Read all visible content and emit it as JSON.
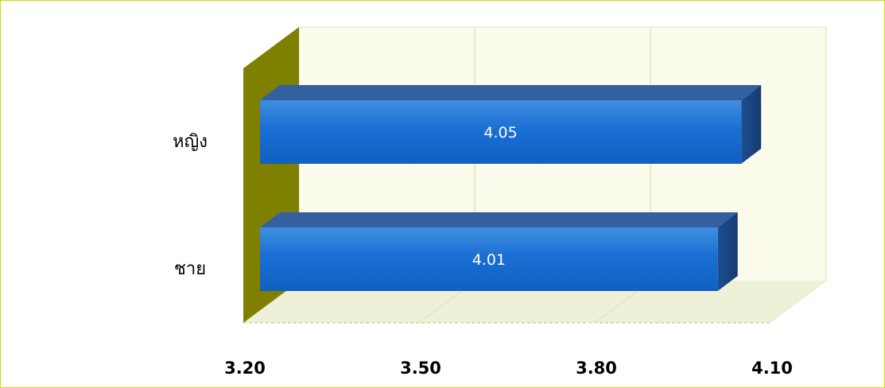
{
  "chart_data": {
    "type": "bar",
    "orientation": "horizontal",
    "three_d": true,
    "categories": [
      "ชาย",
      "หญิง"
    ],
    "values": [
      4.01,
      4.05
    ],
    "data_labels": [
      "4.01",
      "4.05"
    ],
    "x_ticks": [
      3.2,
      3.5,
      3.8,
      4.1
    ],
    "x_tick_labels": [
      "3.20",
      "3.50",
      "3.80",
      "4.10"
    ],
    "xlim": [
      3.2,
      4.1
    ],
    "title": "",
    "xlabel": "",
    "ylabel": "",
    "grid": "vertical",
    "legend": "none",
    "colors": {
      "bar_front": "#1a6fd3",
      "bar_top": "#3560a0",
      "bar_side": "#1e4d8c",
      "back_wall": "#fafbea",
      "floor": "#eef0d8",
      "side_wall": "#808000",
      "grid": "#e3e6c2",
      "frame_border": "#d8d800"
    }
  }
}
